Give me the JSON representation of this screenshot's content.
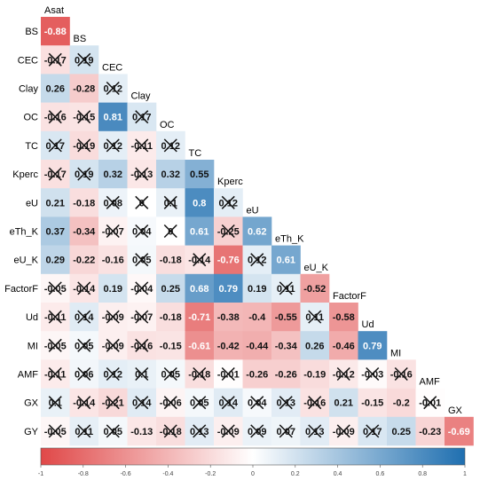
{
  "chart_data": {
    "type": "heatmap",
    "subtype": "lower-triangle correlation matrix",
    "variables": [
      "Asat",
      "BS",
      "CEC",
      "Clay",
      "OC",
      "TC",
      "Kperc",
      "eU",
      "eTh_K",
      "eU_K",
      "FactorF",
      "Ud",
      "MI",
      "AMF",
      "GX",
      "GY"
    ],
    "row_labels": [
      "BS",
      "CEC",
      "Clay",
      "OC",
      "TC",
      "Kperc",
      "eU",
      "eTh_K",
      "eU_K",
      "FactorF",
      "Ud",
      "MI",
      "AMF",
      "GX",
      "GY"
    ],
    "col_labels": [
      "Asat",
      "BS",
      "CEC",
      "Clay",
      "OC",
      "TC",
      "Kperc",
      "eU",
      "eTh_K",
      "eU_K",
      "FactorF",
      "Ud",
      "MI",
      "AMF",
      "GX"
    ],
    "matrix": [
      [
        -0.88
      ],
      [
        -0.17,
        0.19
      ],
      [
        0.26,
        -0.28,
        0.12
      ],
      [
        -0.16,
        -0.15,
        0.81,
        0.17
      ],
      [
        0.17,
        -0.19,
        0.12,
        -0.11,
        0.12
      ],
      [
        -0.17,
        0.19,
        0.32,
        -0.13,
        0.32,
        0.55
      ],
      [
        0.21,
        -0.18,
        0.08,
        0,
        0.1,
        0.8,
        0.12
      ],
      [
        0.37,
        -0.34,
        -0.07,
        0.04,
        0,
        0.61,
        -0.25,
        0.62
      ],
      [
        0.29,
        -0.22,
        -0.16,
        0.05,
        -0.18,
        -0.14,
        -0.76,
        0.12,
        0.61
      ],
      [
        -0.05,
        -0.14,
        0.19,
        -0.04,
        0.25,
        0.68,
        0.79,
        0.19,
        0.11,
        -0.52
      ],
      [
        -0.11,
        0.14,
        -0.09,
        -0.07,
        -0.18,
        -0.71,
        -0.38,
        -0.4,
        -0.55,
        0.11,
        -0.58
      ],
      [
        -0.05,
        0.05,
        -0.09,
        -0.16,
        -0.15,
        -0.61,
        -0.42,
        -0.44,
        -0.34,
        0.26,
        -0.46,
        0.79
      ],
      [
        -0.11,
        0.06,
        0.12,
        0.1,
        0.05,
        -0.18,
        -0.01,
        -0.26,
        -0.26,
        -0.19,
        -0.12,
        -0.03,
        -0.16
      ],
      [
        0.1,
        -0.14,
        -0.21,
        0.14,
        -0.06,
        0.05,
        0.14,
        0.04,
        0.13,
        -0.16,
        0.21,
        -0.15,
        -0.2,
        -0.01
      ],
      [
        -0.05,
        0.11,
        0.05,
        -0.13,
        -0.18,
        0.13,
        -0.09,
        0.09,
        0.07,
        0.13,
        -0.09,
        0.17,
        0.25,
        -0.23,
        -0.69
      ]
    ],
    "crossed_out": [
      [
        false
      ],
      [
        true,
        true
      ],
      [
        false,
        false,
        true
      ],
      [
        true,
        true,
        false,
        true
      ],
      [
        true,
        true,
        true,
        true,
        true
      ],
      [
        true,
        true,
        false,
        true,
        false,
        false
      ],
      [
        false,
        false,
        true,
        true,
        true,
        false,
        true
      ],
      [
        false,
        false,
        true,
        true,
        true,
        false,
        true,
        false
      ],
      [
        false,
        false,
        false,
        true,
        false,
        true,
        false,
        true,
        false
      ],
      [
        true,
        true,
        false,
        true,
        false,
        false,
        false,
        false,
        true,
        false
      ],
      [
        true,
        true,
        true,
        true,
        false,
        false,
        false,
        false,
        false,
        true,
        false
      ],
      [
        true,
        true,
        true,
        true,
        false,
        false,
        false,
        false,
        false,
        false,
        false,
        false
      ],
      [
        true,
        true,
        true,
        true,
        true,
        true,
        true,
        false,
        false,
        false,
        true,
        true,
        true
      ],
      [
        true,
        true,
        true,
        true,
        true,
        true,
        true,
        true,
        true,
        true,
        false,
        false,
        false,
        true
      ],
      [
        true,
        true,
        true,
        false,
        true,
        true,
        true,
        true,
        true,
        true,
        true,
        true,
        false,
        false,
        false
      ]
    ],
    "colorbar": {
      "range": [
        -1,
        1
      ],
      "ticks": [
        "-1",
        "-0.8",
        "-0.6",
        "-0.4",
        "-0.2",
        "0",
        "0.2",
        "0.4",
        "0.6",
        "0.8",
        "1"
      ],
      "low_color": "#e04848",
      "mid_color": "#ffffff",
      "high_color": "#1f6fb0"
    },
    "title": "",
    "xlabel": "",
    "ylabel": "",
    "grid": false,
    "legend": "bottom colorbar"
  }
}
